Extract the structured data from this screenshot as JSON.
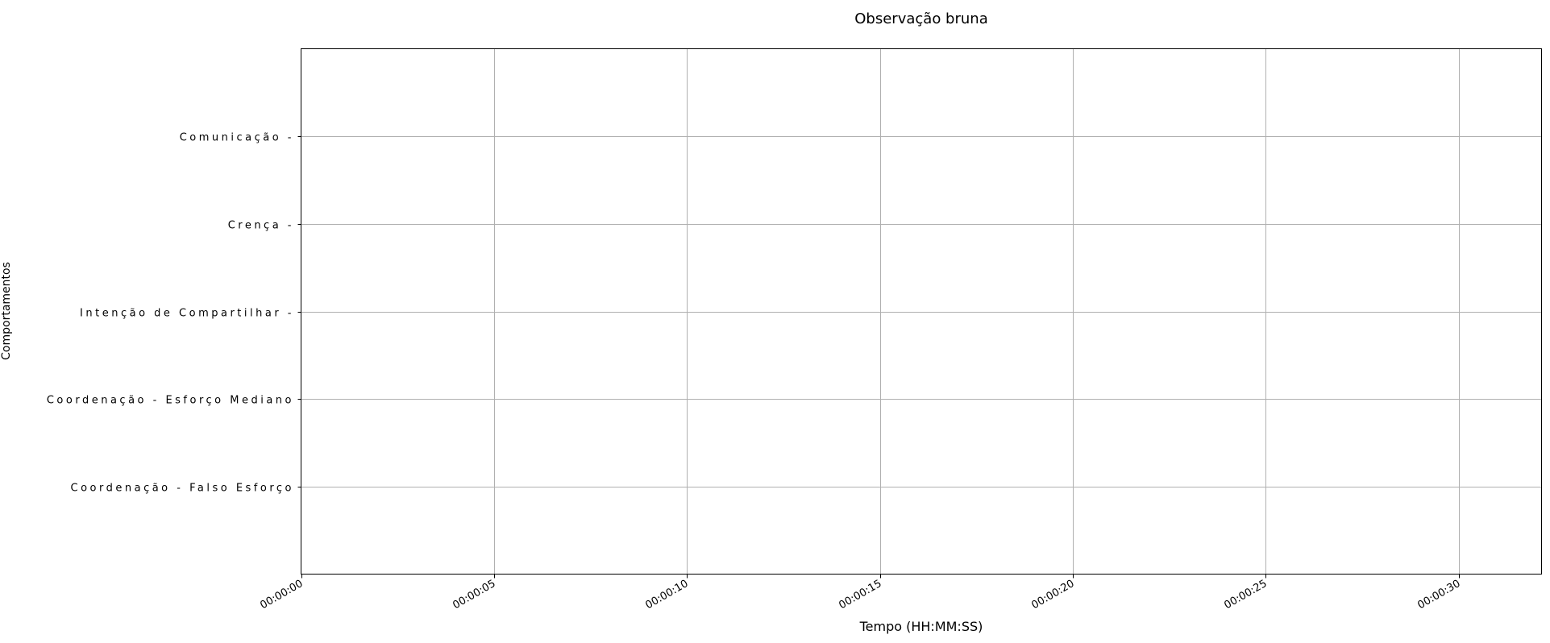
{
  "chart_data": {
    "type": "scatter",
    "title": "Observação bruna",
    "xlabel": "Tempo (HH:MM:SS)",
    "ylabel": "Comportamentos",
    "x_ticks": [
      "00:00:00",
      "00:00:05",
      "00:00:10",
      "00:00:15",
      "00:00:20",
      "00:00:25",
      "00:00:30"
    ],
    "xlim_seconds": [
      0,
      32.15
    ],
    "categories": [
      "Comunicação -",
      "Crença -",
      "Intenção de Compartilhar -",
      "Coordenação - Esforço Mediano",
      "Coordenação - Falso Esforço"
    ],
    "series": [],
    "grid": true,
    "legend": "none"
  }
}
